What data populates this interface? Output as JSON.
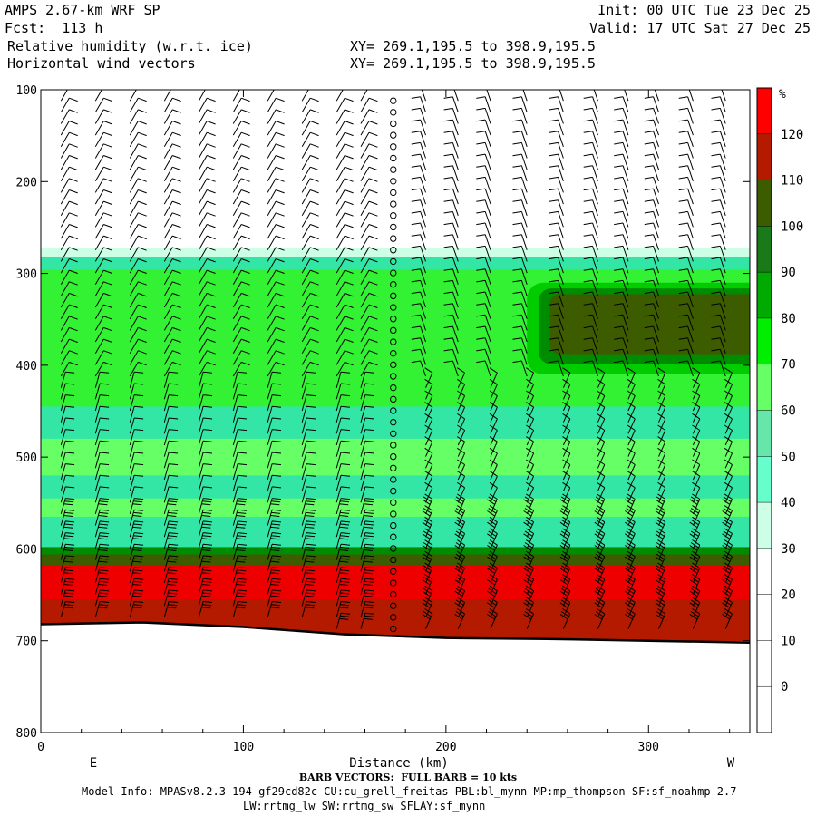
{
  "header": {
    "model_title": "AMPS 2.67-km WRF SP",
    "forecast": "Fcst:  113 h",
    "field1": "Relative humidity (w.r.t. ice)",
    "field2": "Horizontal wind vectors",
    "init": "Init: 00 UTC Tue 23 Dec 25",
    "valid": "Valid: 17 UTC Sat 27 Dec 25",
    "xy1": "XY= 269.1,195.5 to 398.9,195.5",
    "xy2": "XY= 269.1,195.5 to 398.9,195.5"
  },
  "footer": {
    "barb_note": "BARB VECTORS:  FULL BARB = 10 kts",
    "model_info_1": "Model Info: MPASv8.2.3-194-gf29cd82c CU:cu_grell_freitas PBL:bl_mynn MP:mp_thompson SF:sf_noahmp 2.7",
    "model_info_2": "LW:rrtmg_lw SW:rrtmg_sw SFLAY:sf_mynn"
  },
  "colors": {
    "white": "#ffffff",
    "c30": "#ccffe6",
    "c40": "#66ffcc",
    "c50": "#33e6a6",
    "c60": "#66ff66",
    "c70": "#33f233",
    "c80": "#00cc00",
    "c90": "#008c00",
    "c100": "#3d5c00",
    "c110": "#b31a00",
    "c120": "#ee0000"
  },
  "chart_data": {
    "type": "heatmap",
    "title": "Relative humidity (w.r.t. ice)",
    "xlabel": "Distance (km)",
    "ylabel": "",
    "x_range": [
      0,
      350
    ],
    "y_range_hPa": [
      100,
      800
    ],
    "y_inverted": true,
    "x_ticks": [
      "0",
      "100",
      "200",
      "300"
    ],
    "x_tick_values": [
      0,
      100,
      200,
      300
    ],
    "y_ticks": [
      "100",
      "200",
      "300",
      "400",
      "500",
      "600",
      "700",
      "800"
    ],
    "y_tick_values": [
      100,
      200,
      300,
      400,
      500,
      600,
      700,
      800
    ],
    "x_end_labels": {
      "left": "E",
      "right": "W"
    },
    "colorbar": {
      "unit": "%",
      "levels": [
        "120",
        "110",
        "100",
        "90",
        "80",
        "70",
        "60",
        "50",
        "40",
        "30",
        "20",
        "10",
        "0"
      ],
      "level_values": [
        120,
        110,
        100,
        90,
        80,
        70,
        60,
        50,
        40,
        30,
        20,
        10,
        0
      ],
      "bin_colors_top_to_bottom": [
        "#ff0000",
        "#b31a00",
        "#3d5c00",
        "#1a7a1a",
        "#00aa00",
        "#00ee00",
        "#66ff66",
        "#66e6aa",
        "#66ffcc",
        "#ccffe6",
        "#ffffff",
        "#ffffff",
        "#ffffff",
        "#ffffff"
      ]
    },
    "layers_hPa": [
      {
        "from": 272,
        "to": 282,
        "rh": 35
      },
      {
        "from": 282,
        "to": 296,
        "rh": 55
      },
      {
        "from": 296,
        "to": 330,
        "rh": 70
      },
      {
        "from": 330,
        "to": 400,
        "rh": 75
      },
      {
        "from": 400,
        "to": 445,
        "rh": 70
      },
      {
        "from": 445,
        "to": 480,
        "rh": 55
      },
      {
        "from": 480,
        "to": 520,
        "rh": 65
      },
      {
        "from": 520,
        "to": 545,
        "rh": 55
      },
      {
        "from": 545,
        "to": 565,
        "rh": 65
      },
      {
        "from": 565,
        "to": 598,
        "rh": 55
      },
      {
        "from": 598,
        "to": 606,
        "rh": 90
      },
      {
        "from": 606,
        "to": 618,
        "rh": 105
      },
      {
        "from": 618,
        "to": 655,
        "rh": 125
      },
      {
        "from": 655,
        "to": 700,
        "rh": 110
      }
    ],
    "moist_region": {
      "x_km": [
        240,
        350
      ],
      "p_hPa": [
        310,
        410
      ],
      "rh_max": 105
    },
    "terrain_hPa": {
      "x_km": [
        0,
        50,
        100,
        150,
        200,
        250,
        300,
        350
      ],
      "p": [
        682,
        680,
        685,
        693,
        697,
        698,
        700,
        702
      ]
    },
    "wind_barb_columns_km": [
      10,
      27,
      44,
      61,
      78,
      95,
      112,
      129,
      146,
      158,
      174,
      190,
      206,
      222,
      240,
      258,
      275,
      290,
      305,
      322,
      338
    ]
  }
}
